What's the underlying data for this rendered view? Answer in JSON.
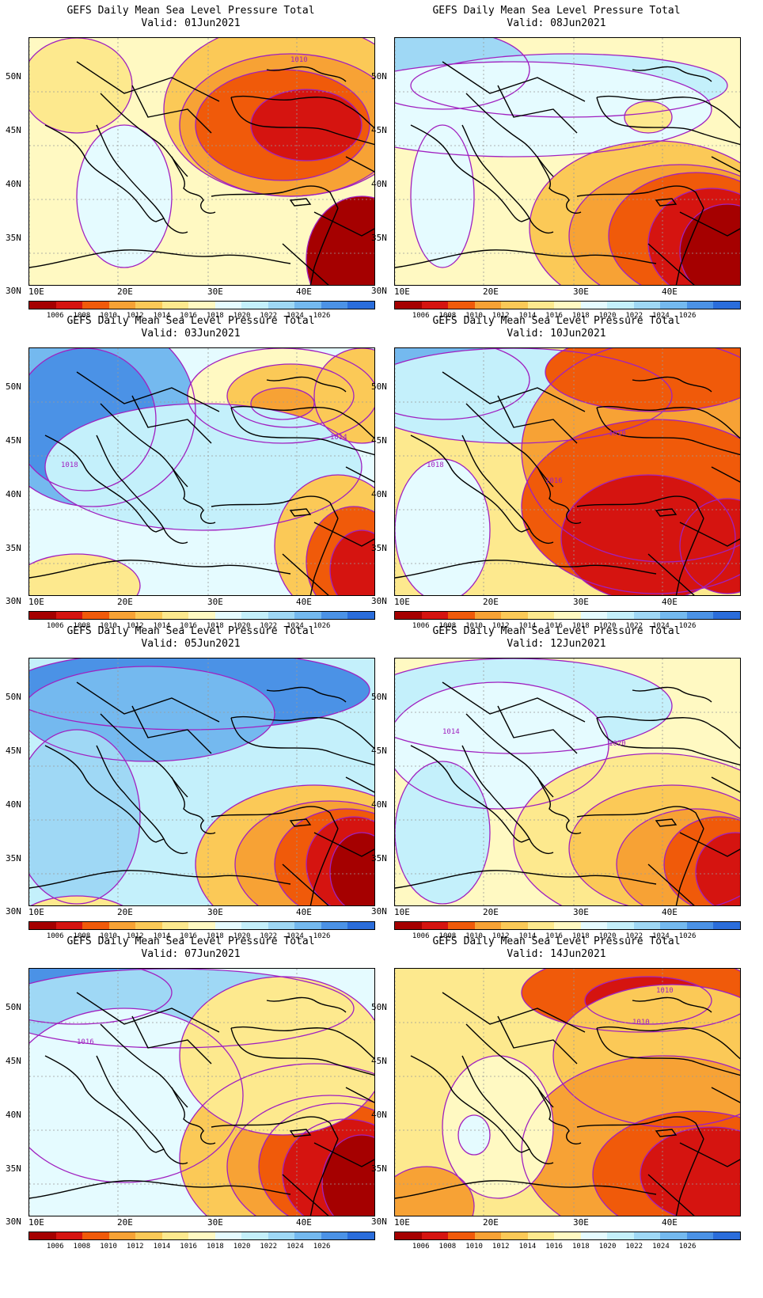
{
  "figure_title": "GEFS Daily Mean Sea Level Pressure Total",
  "valid_prefix": "Valid:",
  "panels": [
    {
      "id": "p1",
      "valid_date": "01Jun2021",
      "contour_labels": [
        "1010"
      ]
    },
    {
      "id": "p2",
      "valid_date": "08Jun2021",
      "contour_labels": []
    },
    {
      "id": "p3",
      "valid_date": "03Jun2021",
      "contour_labels": [
        "1014",
        "1018"
      ]
    },
    {
      "id": "p4",
      "valid_date": "10Jun2021",
      "contour_labels": [
        "1018",
        "1016",
        "1010"
      ]
    },
    {
      "id": "p5",
      "valid_date": "05Jun2021",
      "contour_labels": []
    },
    {
      "id": "p6",
      "valid_date": "12Jun2021",
      "contour_labels": [
        "1020",
        "1014"
      ]
    },
    {
      "id": "p7",
      "valid_date": "07Jun2021",
      "contour_labels": [
        "1016"
      ]
    },
    {
      "id": "p8",
      "valid_date": "14Jun2021",
      "contour_labels": [
        "1010",
        "1010"
      ]
    }
  ],
  "x_axis_ticks": [
    "10E",
    "20E",
    "30E",
    "40E"
  ],
  "y_axis_ticks": [
    "50N",
    "45N",
    "40N",
    "35N",
    "30N"
  ],
  "colorbar": {
    "labels": [
      "1006",
      "1008",
      "1010",
      "1012",
      "1014",
      "1016",
      "1018",
      "1020",
      "1022",
      "1024",
      "1026"
    ],
    "colors": [
      "#a50000",
      "#d51410",
      "#f05a0a",
      "#f7a235",
      "#fbc957",
      "#fde98e",
      "#fff9c2",
      "#e5fbff",
      "#c4f0fb",
      "#9fd8f5",
      "#74b9ef",
      "#4b92e6",
      "#2a6ddb"
    ]
  },
  "colors": {
    "contour_line": "#a020c0",
    "coastline": "#000000",
    "gridline": "#9a9a9a"
  }
}
